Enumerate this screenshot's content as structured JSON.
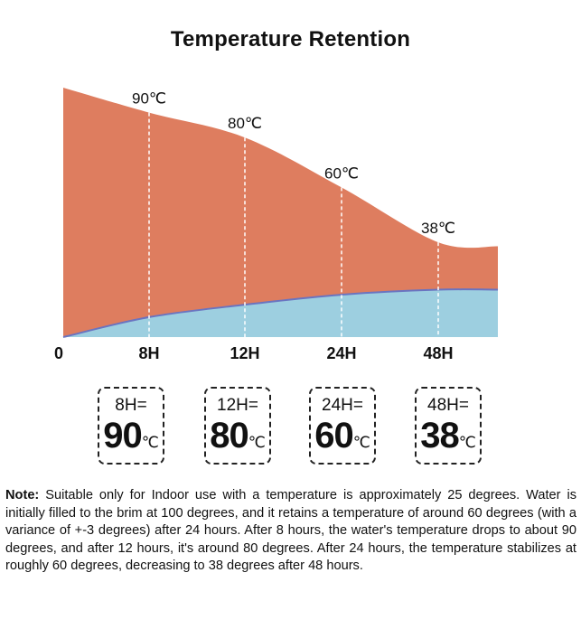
{
  "chart_data": {
    "type": "area",
    "title": "Temperature Retention",
    "x": [
      "0",
      "8H",
      "12H",
      "24H",
      "48H"
    ],
    "series": [
      {
        "values": [
          100,
          90,
          80,
          60,
          38
        ],
        "color": "#de7d5f"
      },
      {
        "values": [
          0,
          8,
          13,
          17,
          19
        ],
        "color": "#9dcfe0"
      }
    ],
    "series_line_color": "#6a74c0",
    "point_labels": [
      "",
      "90℃",
      "80℃",
      "60℃",
      "38℃"
    ],
    "ylim": [
      0,
      100
    ],
    "grid": false,
    "legend": "none"
  },
  "boxes": [
    {
      "label": "8H=",
      "value": "90",
      "unit": "℃"
    },
    {
      "label": "12H=",
      "value": "80",
      "unit": "℃"
    },
    {
      "label": "24H=",
      "value": "60",
      "unit": "℃"
    },
    {
      "label": "48H=",
      "value": "38",
      "unit": "℃"
    }
  ],
  "note": {
    "label": "Note:",
    "text": "Suitable only for Indoor use with a temperature is approximately 25 degrees. Water is initially filled to the brim at 100 degrees, and it retains a temperature of around 60 degrees (with a variance of +-3 degrees) after 24 hours. After 8 hours, the water's temperature drops to about 90 degrees, and after 12 hours, it's around 80 degrees. After 24 hours, the temperature stabilizes at roughly 60 degrees, decreasing to 38 degrees after 48 hours."
  }
}
